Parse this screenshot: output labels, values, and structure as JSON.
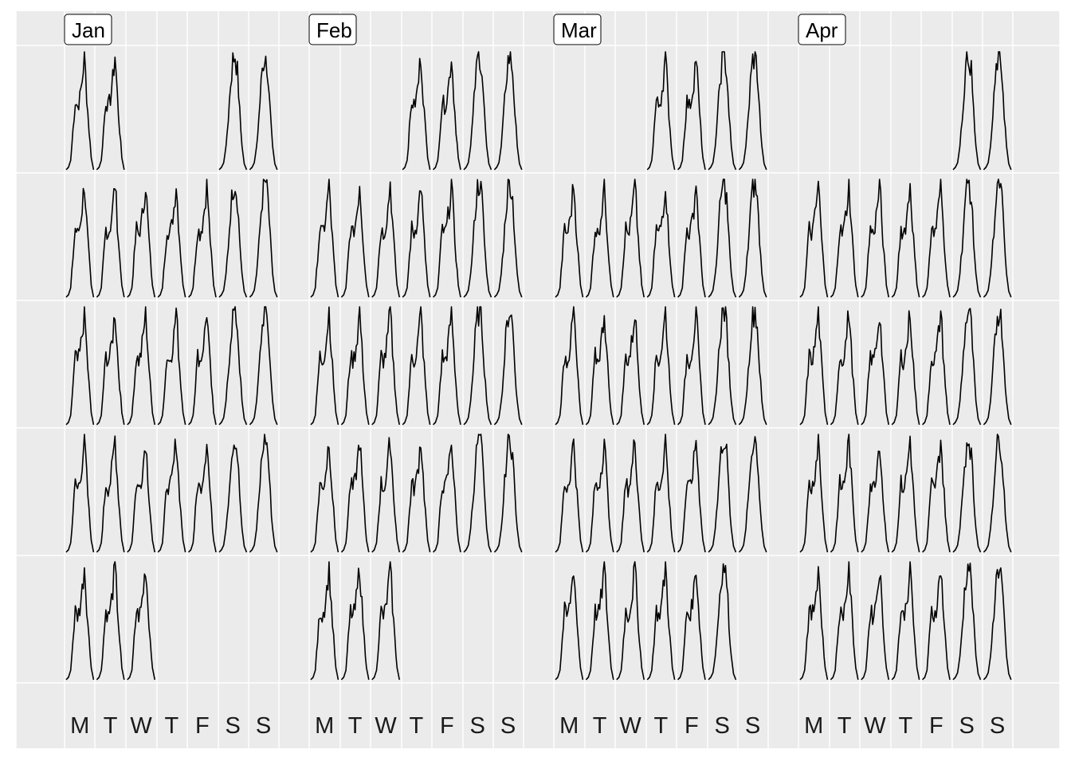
{
  "chart_data": {
    "type": "line",
    "layout": "calendar",
    "title": "",
    "xlabel": "",
    "ylabel": "",
    "panel_background": "#EBEBEB",
    "grid_color": "#FFFFFF",
    "line_color": "#000000",
    "grid": true,
    "months": [
      {
        "label": "Jan",
        "first_weekday": 0,
        "days": 31
      },
      {
        "label": "Feb",
        "first_weekday": 3,
        "days": 28
      },
      {
        "label": "Mar",
        "first_weekday": 3,
        "days": 31
      },
      {
        "label": "Apr",
        "first_weekday": 5,
        "days": 30
      }
    ],
    "day_labels": [
      "M",
      "T",
      "W",
      "T",
      "F",
      "S",
      "S"
    ],
    "weekday_profile": [
      0.0,
      0.02,
      0.08,
      0.35,
      0.6,
      0.55,
      0.62,
      0.78,
      1.0,
      0.65,
      0.35,
      0.1,
      0.0
    ],
    "weekend_profile": [
      0.0,
      0.02,
      0.06,
      0.2,
      0.45,
      0.75,
      0.95,
      1.0,
      0.85,
      0.5,
      0.2,
      0.05,
      0.0
    ],
    "missing_days": [
      {
        "month": "Jan",
        "day": 3
      },
      {
        "month": "Jan",
        "day": 4
      },
      {
        "month": "Jan",
        "day": 5
      }
    ]
  }
}
